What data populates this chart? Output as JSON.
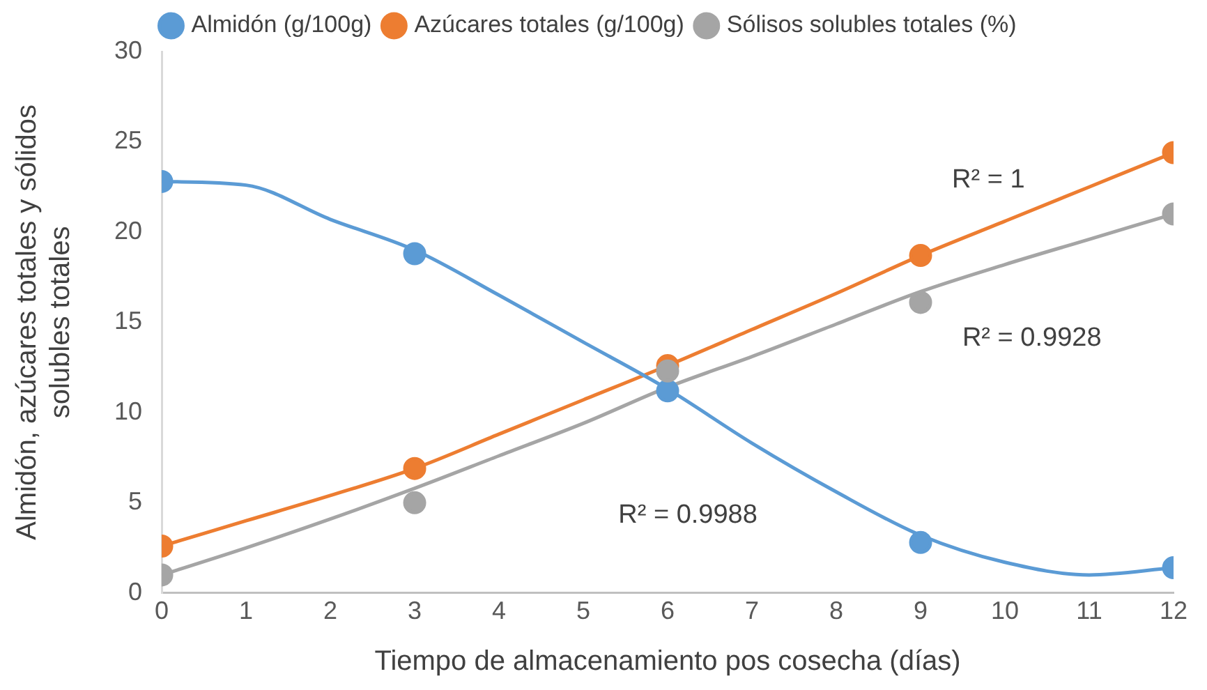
{
  "chart_data": {
    "type": "scatter",
    "xlabel": "Tiempo de almacenamiento pos cosecha (días)",
    "ylabel": "Almidón, azúcares totales y sólidos solubles totales",
    "x": [
      0,
      3,
      6,
      9,
      12
    ],
    "series": [
      {
        "name": "Almidón (g/100g)",
        "color": "#5b9bd5",
        "values": [
          22.8,
          18.8,
          11.2,
          2.8,
          1.4
        ]
      },
      {
        "name": "Azúcares totales (g/100g)",
        "color": "#ed7d31",
        "values": [
          2.6,
          6.9,
          12.6,
          18.7,
          24.4
        ]
      },
      {
        "name": "Sólisos solubles totales (%)",
        "color": "#a5a5a5",
        "values": [
          1.0,
          5.0,
          12.3,
          16.1,
          21.0
        ]
      },
      {
        "type": "line",
        "color": "#5b9bd5",
        "marker": "none",
        "x": [
          0,
          1,
          2,
          3,
          4,
          5,
          6,
          7,
          8,
          9,
          10,
          11,
          12
        ],
        "values": [
          22.8,
          22.6,
          20.7,
          19.0,
          16.5,
          13.9,
          11.3,
          8.3,
          5.6,
          3.2,
          1.7,
          1.0,
          1.4
        ]
      },
      {
        "type": "line",
        "color": "#ed7d31",
        "marker": "none",
        "x": [
          0,
          1,
          2,
          3,
          4,
          5,
          6,
          7,
          8,
          9,
          10,
          11,
          12
        ],
        "values": [
          2.6,
          4.0,
          5.4,
          6.9,
          8.8,
          10.7,
          12.6,
          14.6,
          16.6,
          18.7,
          20.6,
          22.5,
          24.4
        ]
      },
      {
        "type": "line",
        "color": "#a5a5a5",
        "marker": "none",
        "x": [
          0,
          1,
          2,
          3,
          4,
          5,
          6,
          7,
          8,
          9,
          10,
          11,
          12
        ],
        "values": [
          1.0,
          2.5,
          4.1,
          5.8,
          7.6,
          9.4,
          11.4,
          13.1,
          14.9,
          16.7,
          18.2,
          19.6,
          21.0
        ]
      }
    ],
    "annotations": [
      "R² = 1",
      "R² = 0.9928",
      "R² = 0.9988"
    ],
    "xlim": [
      0,
      12
    ],
    "xticks": [
      0,
      1,
      2,
      3,
      4,
      5,
      6,
      7,
      8,
      9,
      10,
      11,
      12
    ],
    "ylim": [
      0,
      30
    ],
    "yticks": [
      0,
      5,
      10,
      15,
      20,
      25,
      30
    ],
    "grid": false,
    "legend": "top",
    "marker": "circle"
  }
}
